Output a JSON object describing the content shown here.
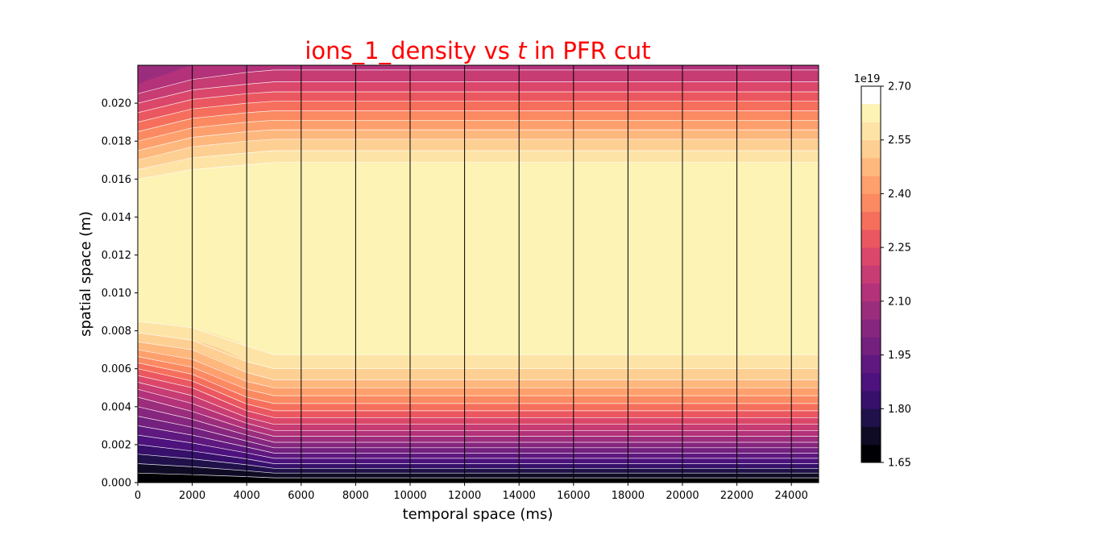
{
  "chart_data": {
    "type": "heatmap",
    "title": {
      "prefix": "ions_1_density vs ",
      "variable": "t",
      "suffix": " in PFR cut"
    },
    "title_color": "#ff0000",
    "xlabel": "temporal space (ms)",
    "ylabel": "spatial space (m)",
    "xlim": [
      0,
      25000
    ],
    "ylim": [
      0,
      0.022
    ],
    "x_ticks": [
      0,
      2000,
      4000,
      6000,
      8000,
      10000,
      12000,
      14000,
      16000,
      18000,
      20000,
      22000,
      24000
    ],
    "x_tick_labels": [
      "0",
      "2000",
      "4000",
      "6000",
      "8000",
      "10000",
      "12000",
      "14000",
      "16000",
      "18000",
      "20000",
      "22000",
      "24000"
    ],
    "y_ticks": [
      0,
      0.002,
      0.004,
      0.006,
      0.008,
      0.01,
      0.012,
      0.014,
      0.016,
      0.018,
      0.02
    ],
    "y_tick_labels": [
      "0.000",
      "0.002",
      "0.004",
      "0.006",
      "0.008",
      "0.010",
      "0.012",
      "0.014",
      "0.016",
      "0.018",
      "0.020"
    ],
    "vertical_lines_x": [
      2000,
      4000,
      6000,
      8000,
      10000,
      12000,
      14000,
      16000,
      18000,
      20000,
      22000,
      24000
    ],
    "grid": false,
    "colormap": "magma",
    "colorbar": {
      "offset_label": "1e19",
      "min": 1.65,
      "max": 2.7,
      "ticks": [
        1.65,
        1.8,
        1.95,
        2.1,
        2.25,
        2.4,
        2.55,
        2.7
      ],
      "tick_labels": [
        "1.65",
        "1.80",
        "1.95",
        "2.10",
        "2.25",
        "2.40",
        "2.55",
        "2.70"
      ],
      "level_step": 0.05,
      "colors": [
        "#000004",
        "#0f0b25",
        "#20114b",
        "#36106b",
        "#4d127d",
        "#5f187f",
        "#73207f",
        "#87267f",
        "#9b2d7d",
        "#b3327a",
        "#c63c73",
        "#db476a",
        "#eb5760",
        "#f66f5c",
        "#fb8a62",
        "#fea06d",
        "#feb77d",
        "#fecf92",
        "#fde4a6",
        "#fcf3b4"
      ]
    },
    "profile": {
      "x": [
        0,
        2000,
        4000,
        5000,
        25000
      ],
      "y": [
        0,
        0.0005,
        0.001,
        0.0015,
        0.002,
        0.0025,
        0.003,
        0.0035,
        0.004,
        0.0045,
        0.005,
        0.0055,
        0.006,
        0.0065,
        0.007,
        0.0075,
        0.008,
        0.0085,
        0.009,
        0.0095,
        0.01,
        0.0105,
        0.011,
        0.0115,
        0.012,
        0.0125,
        0.013,
        0.0135,
        0.014,
        0.0145,
        0.015,
        0.0155,
        0.016,
        0.0165,
        0.017,
        0.0175,
        0.018,
        0.0185,
        0.019,
        0.0195,
        0.02,
        0.0205,
        0.021,
        0.0215,
        0.022
      ],
      "values_e19": [
        [
          1.65,
          1.7,
          1.75,
          1.8,
          1.85,
          1.9,
          1.95,
          2.0,
          2.05,
          2.1,
          2.16,
          2.23,
          2.3,
          2.38,
          2.45,
          2.51,
          2.56,
          2.6,
          2.63,
          2.645,
          2.66,
          2.675,
          2.69,
          2.7,
          2.7,
          2.7,
          2.7,
          2.7,
          2.7,
          2.69,
          2.67,
          2.64,
          2.6,
          2.55,
          2.5,
          2.45,
          2.4,
          2.35,
          2.3,
          2.25,
          2.2,
          2.15,
          2.1,
          2.07,
          2.05
        ],
        [
          1.65,
          1.71,
          1.77,
          1.83,
          1.89,
          1.95,
          2.01,
          2.07,
          2.13,
          2.19,
          2.25,
          2.32,
          2.39,
          2.45,
          2.5,
          2.55,
          2.59,
          2.62,
          2.64,
          2.655,
          2.67,
          2.685,
          2.7,
          2.7,
          2.7,
          2.7,
          2.7,
          2.7,
          2.7,
          2.7,
          2.695,
          2.67,
          2.64,
          2.6,
          2.56,
          2.52,
          2.47,
          2.42,
          2.37,
          2.32,
          2.27,
          2.22,
          2.17,
          2.13,
          2.1
        ],
        [
          1.65,
          1.73,
          1.81,
          1.89,
          1.97,
          2.05,
          2.13,
          2.21,
          2.28,
          2.35,
          2.41,
          2.47,
          2.52,
          2.56,
          2.59,
          2.615,
          2.64,
          2.655,
          2.67,
          2.685,
          2.7,
          2.7,
          2.7,
          2.7,
          2.7,
          2.7,
          2.7,
          2.7,
          2.7,
          2.7,
          2.7,
          2.69,
          2.66,
          2.62,
          2.58,
          2.54,
          2.5,
          2.45,
          2.4,
          2.35,
          2.3,
          2.25,
          2.2,
          2.16,
          2.12
        ],
        [
          1.65,
          1.75,
          1.85,
          1.94,
          2.03,
          2.11,
          2.19,
          2.26,
          2.33,
          2.39,
          2.45,
          2.51,
          2.55,
          2.59,
          2.61,
          2.63,
          2.65,
          2.66,
          2.675,
          2.69,
          2.7,
          2.7,
          2.7,
          2.7,
          2.7,
          2.7,
          2.7,
          2.7,
          2.7,
          2.7,
          2.7,
          2.695,
          2.67,
          2.63,
          2.59,
          2.55,
          2.51,
          2.46,
          2.41,
          2.36,
          2.31,
          2.26,
          2.21,
          2.17,
          2.13
        ],
        [
          1.65,
          1.75,
          1.85,
          1.94,
          2.03,
          2.11,
          2.19,
          2.26,
          2.33,
          2.39,
          2.45,
          2.51,
          2.55,
          2.59,
          2.61,
          2.63,
          2.65,
          2.66,
          2.675,
          2.69,
          2.7,
          2.7,
          2.7,
          2.7,
          2.7,
          2.7,
          2.7,
          2.7,
          2.7,
          2.7,
          2.7,
          2.695,
          2.67,
          2.63,
          2.59,
          2.55,
          2.51,
          2.46,
          2.41,
          2.36,
          2.31,
          2.26,
          2.21,
          2.17,
          2.13
        ]
      ]
    }
  }
}
